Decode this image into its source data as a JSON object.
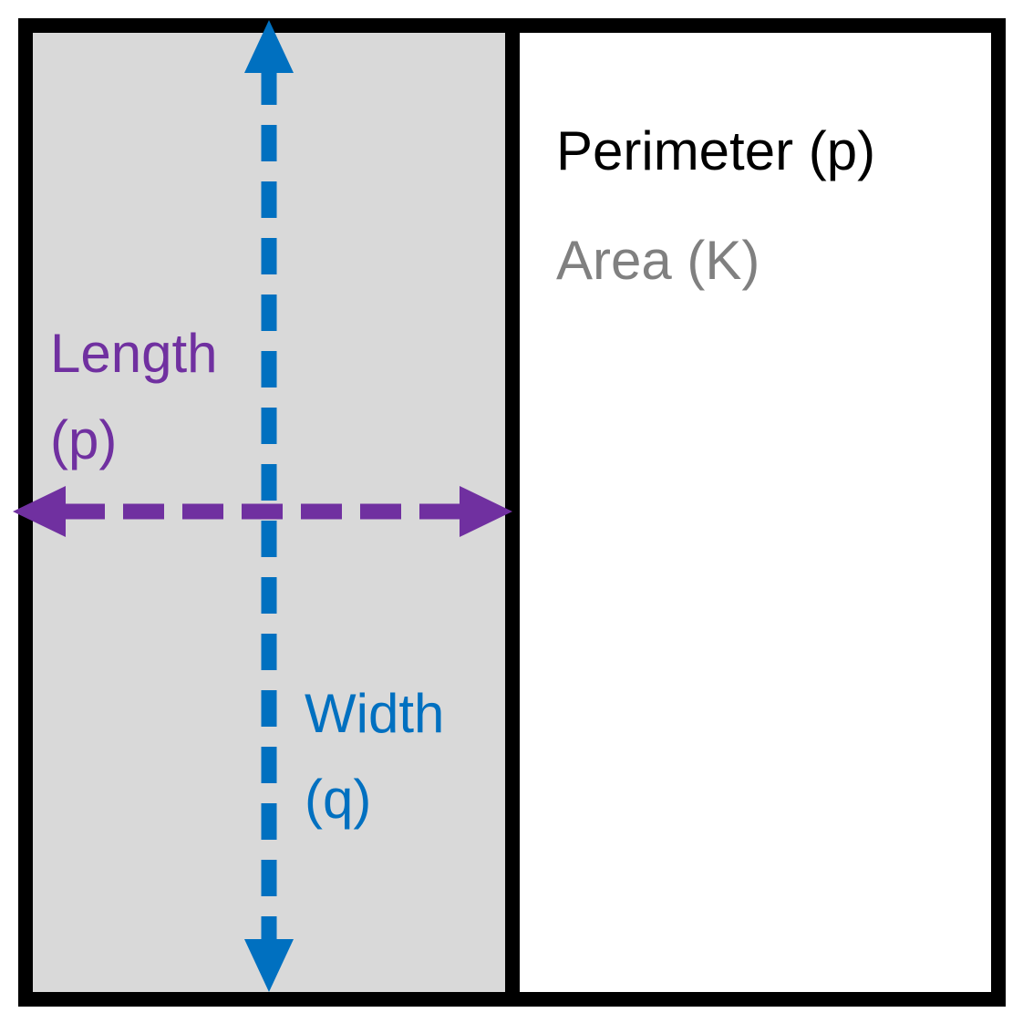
{
  "diagram": {
    "perimeter_label": "Perimeter (p)",
    "area_label": "Area (K)",
    "length_label_line1": "Length",
    "length_label_line2": "(p)",
    "width_label_line1": "Width",
    "width_label_line2": "(q)"
  },
  "colors": {
    "outline": "#000000",
    "shaded_region": "#d9d9d9",
    "length_arrow": "#7030a0",
    "width_arrow": "#0070c0",
    "perimeter_text": "#000000",
    "area_text": "#808080"
  }
}
